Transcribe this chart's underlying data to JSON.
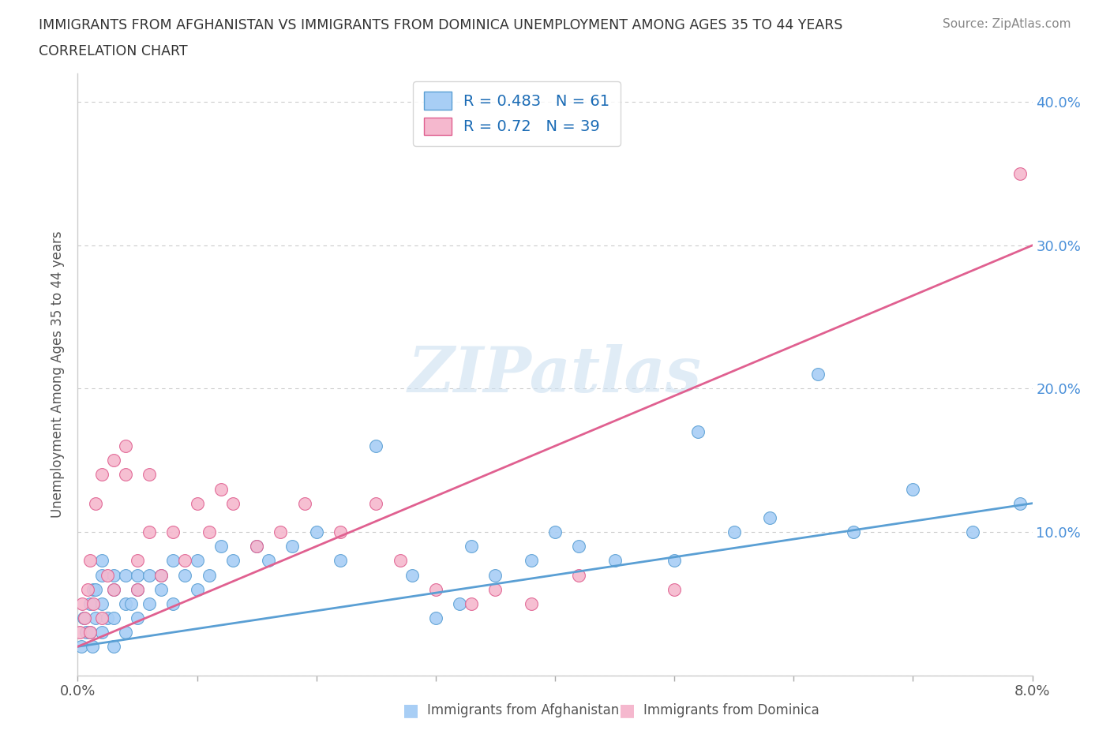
{
  "title_line1": "IMMIGRANTS FROM AFGHANISTAN VS IMMIGRANTS FROM DOMINICA UNEMPLOYMENT AMONG AGES 35 TO 44 YEARS",
  "title_line2": "CORRELATION CHART",
  "source": "Source: ZipAtlas.com",
  "ylabel": "Unemployment Among Ages 35 to 44 years",
  "xlim": [
    0.0,
    0.08
  ],
  "ylim": [
    0.0,
    0.42
  ],
  "xtick_vals": [
    0.0,
    0.01,
    0.02,
    0.03,
    0.04,
    0.05,
    0.06,
    0.07,
    0.08
  ],
  "xticklabels": [
    "0.0%",
    "",
    "",
    "",
    "",
    "",
    "",
    "",
    "8.0%"
  ],
  "ytick_vals": [
    0.0,
    0.1,
    0.2,
    0.3,
    0.4
  ],
  "yticklabels_right": [
    "",
    "10.0%",
    "20.0%",
    "30.0%",
    "40.0%"
  ],
  "afghanistan_R": 0.483,
  "afghanistan_N": 61,
  "dominica_R": 0.72,
  "dominica_N": 39,
  "afghanistan_color": "#a8cef5",
  "dominica_color": "#f5b8ce",
  "afghanistan_edge_color": "#5a9fd4",
  "dominica_edge_color": "#e06090",
  "afghanistan_line_color": "#5a9fd4",
  "dominica_line_color": "#e06090",
  "right_tick_color": "#4a90d9",
  "legend_text_color": "#1a6bb5",
  "watermark": "ZIPatlas",
  "watermark_color": "#c8ddf0",
  "af_line_y0": 0.02,
  "af_line_y1": 0.12,
  "dom_line_y0": 0.02,
  "dom_line_y1": 0.3,
  "afghanistan_x": [
    0.0003,
    0.0005,
    0.0007,
    0.001,
    0.001,
    0.0012,
    0.0013,
    0.0015,
    0.0015,
    0.002,
    0.002,
    0.002,
    0.002,
    0.0025,
    0.003,
    0.003,
    0.003,
    0.003,
    0.004,
    0.004,
    0.004,
    0.0045,
    0.005,
    0.005,
    0.005,
    0.006,
    0.006,
    0.007,
    0.007,
    0.008,
    0.008,
    0.009,
    0.01,
    0.01,
    0.011,
    0.012,
    0.013,
    0.015,
    0.016,
    0.018,
    0.02,
    0.022,
    0.025,
    0.028,
    0.03,
    0.032,
    0.033,
    0.035,
    0.038,
    0.04,
    0.042,
    0.045,
    0.05,
    0.052,
    0.055,
    0.058,
    0.062,
    0.065,
    0.07,
    0.075,
    0.079
  ],
  "afghanistan_y": [
    0.02,
    0.04,
    0.03,
    0.03,
    0.05,
    0.02,
    0.06,
    0.04,
    0.06,
    0.03,
    0.05,
    0.07,
    0.08,
    0.04,
    0.02,
    0.04,
    0.06,
    0.07,
    0.03,
    0.05,
    0.07,
    0.05,
    0.04,
    0.06,
    0.07,
    0.05,
    0.07,
    0.06,
    0.07,
    0.05,
    0.08,
    0.07,
    0.06,
    0.08,
    0.07,
    0.09,
    0.08,
    0.09,
    0.08,
    0.09,
    0.1,
    0.08,
    0.16,
    0.07,
    0.04,
    0.05,
    0.09,
    0.07,
    0.08,
    0.1,
    0.09,
    0.08,
    0.08,
    0.17,
    0.1,
    0.11,
    0.21,
    0.1,
    0.13,
    0.1,
    0.12
  ],
  "dominica_x": [
    0.0002,
    0.0004,
    0.0006,
    0.0008,
    0.001,
    0.001,
    0.0013,
    0.0015,
    0.002,
    0.002,
    0.0025,
    0.003,
    0.003,
    0.004,
    0.004,
    0.005,
    0.005,
    0.006,
    0.006,
    0.007,
    0.008,
    0.009,
    0.01,
    0.011,
    0.012,
    0.013,
    0.015,
    0.017,
    0.019,
    0.022,
    0.025,
    0.027,
    0.03,
    0.033,
    0.035,
    0.038,
    0.042,
    0.05,
    0.079
  ],
  "dominica_y": [
    0.03,
    0.05,
    0.04,
    0.06,
    0.03,
    0.08,
    0.05,
    0.12,
    0.04,
    0.14,
    0.07,
    0.06,
    0.15,
    0.14,
    0.16,
    0.06,
    0.08,
    0.1,
    0.14,
    0.07,
    0.1,
    0.08,
    0.12,
    0.1,
    0.13,
    0.12,
    0.09,
    0.1,
    0.12,
    0.1,
    0.12,
    0.08,
    0.06,
    0.05,
    0.06,
    0.05,
    0.07,
    0.06,
    0.35
  ]
}
